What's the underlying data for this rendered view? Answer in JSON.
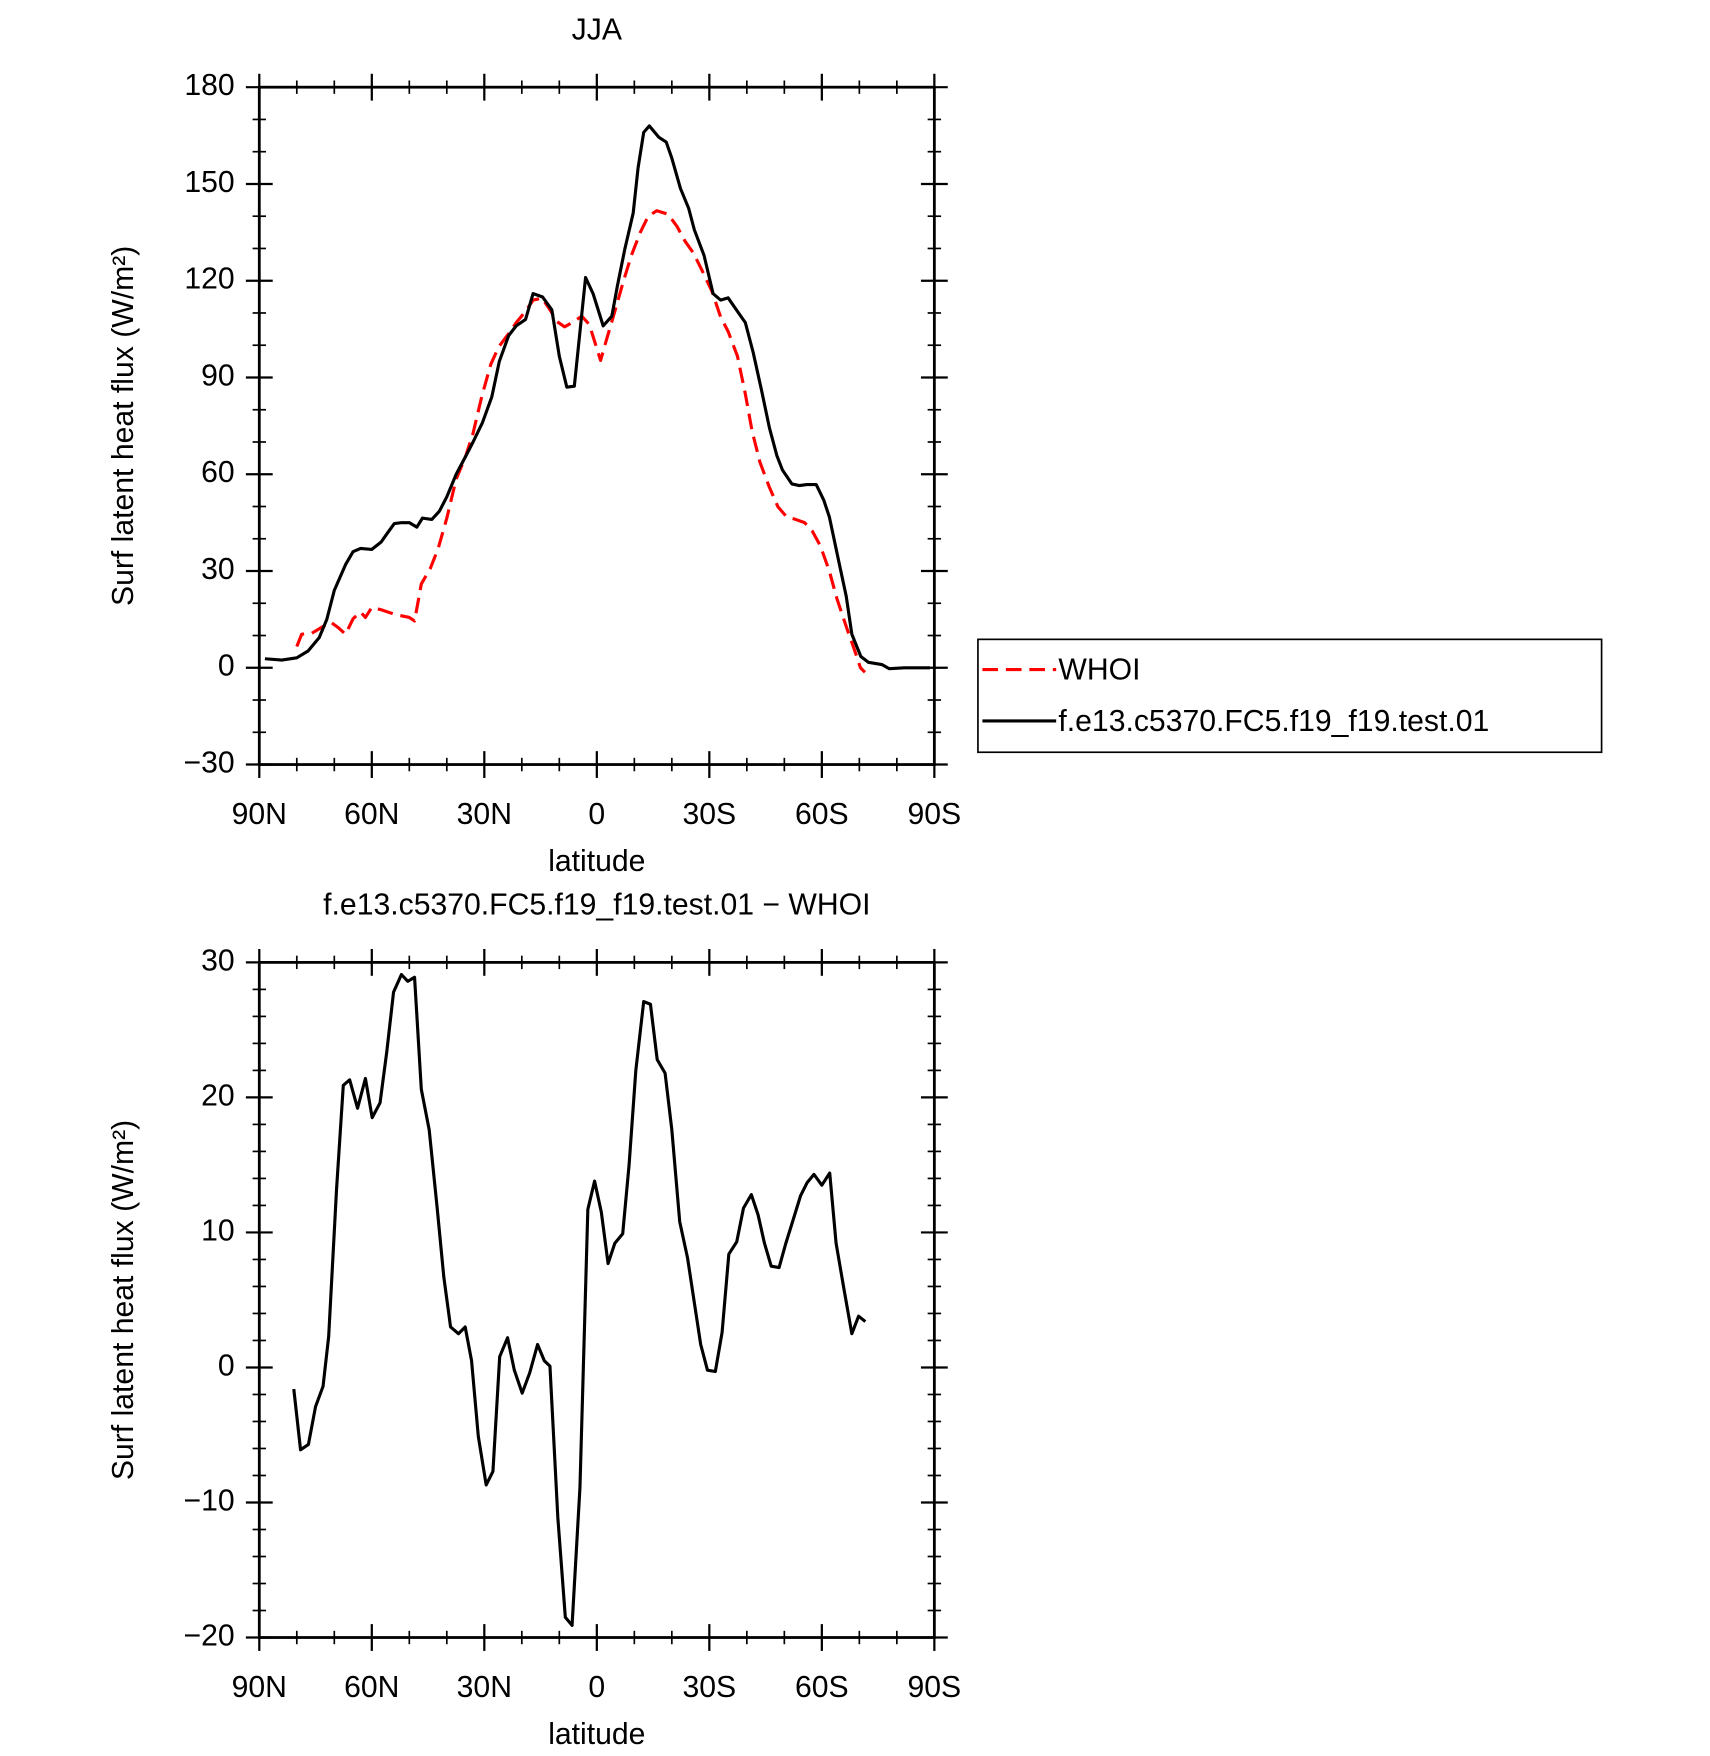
{
  "chart_data": [
    {
      "type": "line",
      "title": "JJA",
      "xlabel": "latitude",
      "ylabel": "Surf latent heat flux (W/m²)",
      "xlim": [
        90,
        -90
      ],
      "xticks": [
        {
          "value": 90,
          "label": "90N"
        },
        {
          "value": 60,
          "label": "60N"
        },
        {
          "value": 30,
          "label": "30N"
        },
        0,
        {
          "value": -30,
          "label": "30S"
        },
        {
          "value": -60,
          "label": "60S"
        },
        {
          "value": -90,
          "label": "90S"
        }
      ],
      "xminorticks": [
        80,
        70,
        50,
        40,
        20,
        10,
        -10,
        -20,
        -40,
        -50,
        -70,
        -80
      ],
      "ylim": [
        -30,
        180
      ],
      "yticks": [
        {
          "value": -30,
          "label": "−30"
        },
        0,
        30,
        60,
        90,
        120,
        150,
        180
      ],
      "yminorticks": [
        -20,
        -10,
        10,
        20,
        40,
        50,
        70,
        80,
        100,
        110,
        130,
        140,
        160,
        170
      ],
      "legend": "right",
      "series": [
        {
          "name": "WHOI",
          "color": "#ff0000",
          "dash": true,
          "x": [
            80,
            78.7,
            76,
            73,
            71,
            69,
            67,
            65,
            63,
            61.7,
            60,
            57.5,
            54,
            50,
            48.6,
            46.8,
            44.4,
            42.3,
            40,
            37.5,
            35,
            33,
            30.7,
            28.3,
            26.2,
            23.5,
            21.5,
            19,
            17,
            14.6,
            12.5,
            10.7,
            8.6,
            6.6,
            4,
            2,
            -1,
            -2.4,
            -4.8,
            -7,
            -9.2,
            -11.6,
            -13.7,
            -16,
            -19,
            -21.4,
            -23.5,
            -25.8,
            -28.3,
            -30.7,
            -33,
            -35,
            -37.5,
            -39.6,
            -41.4,
            -43.5,
            -46,
            -48.3,
            -50.6,
            -53,
            -55.4,
            -57.5,
            -59.6,
            -62,
            -64,
            -66.5,
            -68.8,
            -70.3,
            -71.5
          ],
          "values": [
            6.6,
            10.4,
            10.7,
            12.8,
            14.2,
            12.5,
            10.4,
            15.2,
            17.3,
            15.6,
            18.7,
            18,
            16.6,
            15.6,
            14.5,
            26,
            30.8,
            37,
            46.4,
            58.5,
            65.5,
            72.7,
            84,
            94,
            99.4,
            103.6,
            107,
            110.5,
            114,
            114.6,
            111,
            107.4,
            105.7,
            107,
            109,
            106.4,
            95.3,
            101,
            110.5,
            119.5,
            127.8,
            135,
            140,
            141.7,
            140.6,
            136.8,
            132.3,
            128.5,
            122.6,
            116.7,
            108.8,
            104.3,
            96.6,
            84.9,
            73.4,
            63.7,
            56,
            49.9,
            46.8,
            46,
            45,
            42.3,
            37.8,
            30,
            21.5,
            12.8,
            5.2,
            0,
            -1.4
          ]
        },
        {
          "name": "f.e13.c5370.FC5.f19_f19.test.01",
          "color": "#000000",
          "dash": false,
          "x": [
            88.5,
            84,
            80,
            77,
            74,
            72,
            70,
            67,
            65,
            63,
            60,
            57.5,
            56,
            54,
            52,
            50,
            48,
            46.5,
            44,
            42,
            40,
            37.5,
            35,
            33,
            30.5,
            28,
            26,
            23.5,
            21.5,
            19,
            17,
            14.5,
            12,
            10,
            8,
            6,
            3,
            1,
            -1.7,
            -4,
            -5.5,
            -7.5,
            -9.7,
            -11,
            -12.5,
            -14,
            -16.5,
            -18.5,
            -20,
            -22.3,
            -24.5,
            -26,
            -28.6,
            -31,
            -33,
            -35,
            -37.5,
            -39.6,
            -41.7,
            -44,
            -46,
            -48,
            -49.5,
            -52,
            -54,
            -56,
            -58.5,
            -60.5,
            -62,
            -64.4,
            -66.5,
            -68,
            -70.4,
            -72.4,
            -76,
            -78,
            -82,
            -88.8
          ],
          "values": [
            2.8,
            2.4,
            3.1,
            5.2,
            9.4,
            15,
            24,
            32,
            36,
            37,
            36.7,
            39,
            41.5,
            44.7,
            45,
            45,
            43.6,
            46.4,
            46,
            48.5,
            53,
            60,
            65.5,
            70,
            76,
            84,
            95,
            103,
            106,
            108,
            116,
            115,
            111,
            96.6,
            87,
            87.3,
            121,
            116,
            106,
            109,
            118.5,
            130,
            141,
            155,
            166,
            168,
            164.5,
            163,
            158,
            148.6,
            142.4,
            135.8,
            127.8,
            116,
            114,
            114.7,
            110.5,
            107,
            97.7,
            85.6,
            74.5,
            65.8,
            61.3,
            57,
            56.5,
            56.8,
            56.8,
            52,
            46.8,
            33.6,
            22.2,
            10.4,
            3.5,
            1.7,
            1,
            -0.3,
            0,
            0
          ]
        }
      ]
    },
    {
      "type": "line",
      "title": "f.e13.c5370.FC5.f19_f19.test.01 − WHOI",
      "xlabel": "latitude",
      "ylabel": "Surf latent heat flux (W/m²)",
      "xlim": [
        90,
        -90
      ],
      "xticks": [
        {
          "value": 90,
          "label": "90N"
        },
        {
          "value": 60,
          "label": "60N"
        },
        {
          "value": 30,
          "label": "30N"
        },
        0,
        {
          "value": -30,
          "label": "30S"
        },
        {
          "value": -60,
          "label": "60S"
        },
        {
          "value": -90,
          "label": "90S"
        }
      ],
      "xminorticks": [
        80,
        70,
        50,
        40,
        20,
        10,
        -10,
        -20,
        -40,
        -50,
        -70,
        -80
      ],
      "ylim": [
        -20,
        30
      ],
      "yticks": [
        {
          "value": -20,
          "label": "−20"
        },
        {
          "value": -10,
          "label": "−10"
        },
        0,
        10,
        20,
        30
      ],
      "yminorticks": [
        -18,
        -16,
        -14,
        -12,
        -8,
        -6,
        -4,
        -2,
        2,
        4,
        6,
        8,
        12,
        14,
        16,
        18,
        22,
        24,
        26,
        28
      ],
      "series": [
        {
          "color": "#000000",
          "dash": false,
          "x": [
            80.8,
            79,
            76.9,
            75,
            73,
            71.5,
            69.4,
            67.6,
            65.9,
            63.8,
            61.7,
            59.9,
            57.8,
            56,
            54.2,
            52.1,
            50.4,
            48.6,
            46.8,
            44.7,
            42.6,
            40.8,
            39,
            36.9,
            35.1,
            33.4,
            31.6,
            29.5,
            27.7,
            25.9,
            23.8,
            22,
            19.9,
            17.9,
            15.8,
            14,
            12.5,
            10.4,
            8.4,
            6.6,
            4.5,
            2.4,
            0.6,
            -1.2,
            -3,
            -4.8,
            -6.9,
            -8.6,
            -10.4,
            -12.5,
            -14.3,
            -16.1,
            -18.2,
            -20,
            -22.1,
            -24.2,
            -26,
            -27.7,
            -29.5,
            -31.6,
            -33.4,
            -35.2,
            -37.3,
            -39.1,
            -41.2,
            -43,
            -44.7,
            -46.5,
            -48.6,
            -50.4,
            -52.2,
            -54.3,
            -56.1,
            -57.9,
            -60,
            -62.1,
            -63.8,
            -65.9,
            -68,
            -69.8,
            -71.6
          ],
          "values": [
            -1.6,
            -6.1,
            -5.7,
            -2.9,
            -1.4,
            2.3,
            13.2,
            20.9,
            21.3,
            19.2,
            21.4,
            18.5,
            19.6,
            23.4,
            27.8,
            29.1,
            28.6,
            28.9,
            20.6,
            17.6,
            11.9,
            6.7,
            3,
            2.5,
            3,
            0.5,
            -5.1,
            -8.7,
            -7.7,
            0.8,
            2.2,
            -0.2,
            -1.9,
            -0.4,
            1.7,
            0.5,
            0.1,
            -11.1,
            -18.5,
            -19.1,
            -8.9,
            11.7,
            13.8,
            11.5,
            7.7,
            9.2,
            9.9,
            15,
            22,
            27.1,
            26.9,
            22.8,
            21.8,
            17.6,
            10.8,
            8.1,
            4.8,
            1.7,
            -0.2,
            -0.3,
            2.6,
            8.4,
            9.3,
            11.8,
            12.8,
            11.3,
            9.2,
            7.5,
            7.4,
            9.2,
            10.8,
            12.7,
            13.7,
            14.3,
            13.5,
            14.4,
            9.2,
            5.8,
            2.5,
            3.8,
            3.4
          ]
        }
      ]
    }
  ]
}
